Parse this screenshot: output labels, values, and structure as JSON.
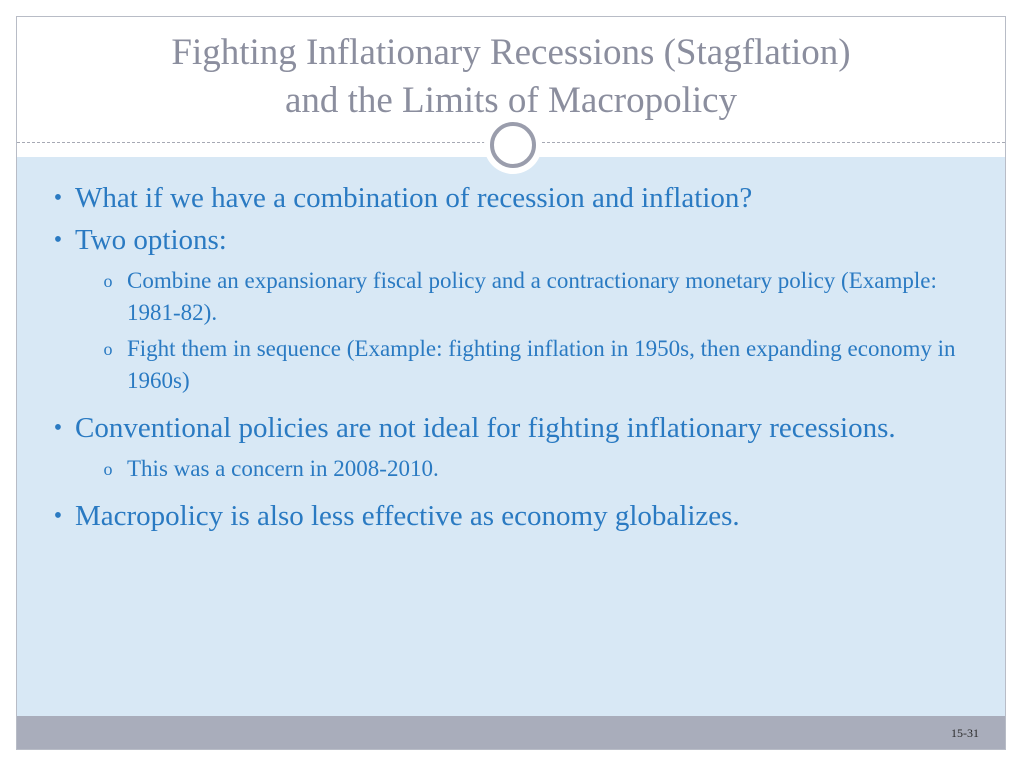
{
  "slide": {
    "title_line1": "Fighting Inflationary Recessions (Stagflation)",
    "title_line2": "and the Limits of Macropolicy",
    "bullets": [
      {
        "text": "What if we have a combination of recession and inflation?"
      },
      {
        "text": "Two options:"
      },
      {
        "text": "Combine an expansionary fiscal policy and a contractionary monetary policy (Example: 1981-82)."
      },
      {
        "text": "Fight them in sequence (Example: fighting inflation in 1950s, then expanding economy in 1960s)"
      },
      {
        "text": "Conventional policies are not ideal for fighting inflationary recessions."
      },
      {
        "text": "This was a concern in 2008-2010."
      },
      {
        "text": "Macropolicy is also less effective as economy globalizes."
      }
    ],
    "bullet_marker": "•",
    "sub_bullet_marker": "o",
    "page_number": "15-31"
  },
  "colors": {
    "title": "#8b8e9e",
    "body_text": "#2a7ac2",
    "content_background": "#d8e8f5",
    "footer_bar": "#a9adbb",
    "emblem_ring": "#9a9dac"
  }
}
